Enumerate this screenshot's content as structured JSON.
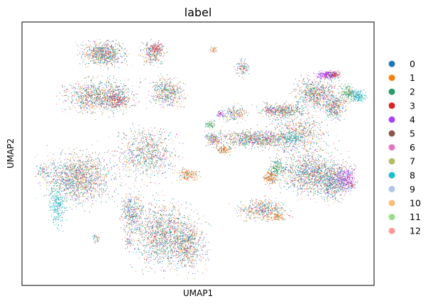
{
  "chart_data": {
    "type": "scatter",
    "title": "label",
    "xlabel": "UMAP1",
    "ylabel": "UMAP2",
    "grid": false,
    "ticks": false,
    "legend_placement": "right",
    "series": [
      {
        "name": "0",
        "color": "#1f77b4"
      },
      {
        "name": "1",
        "color": "#ff7f0e"
      },
      {
        "name": "2",
        "color": "#279e68"
      },
      {
        "name": "3",
        "color": "#d62728"
      },
      {
        "name": "4",
        "color": "#aa40fc"
      },
      {
        "name": "5",
        "color": "#8c564b"
      },
      {
        "name": "6",
        "color": "#e377c2"
      },
      {
        "name": "7",
        "color": "#b5bd61"
      },
      {
        "name": "8",
        "color": "#17becf"
      },
      {
        "name": "9",
        "color": "#aec7e8"
      },
      {
        "name": "10",
        "color": "#ffbb78"
      },
      {
        "name": "11",
        "color": "#98df8a"
      },
      {
        "name": "12",
        "color": "#ff9896"
      }
    ]
  }
}
